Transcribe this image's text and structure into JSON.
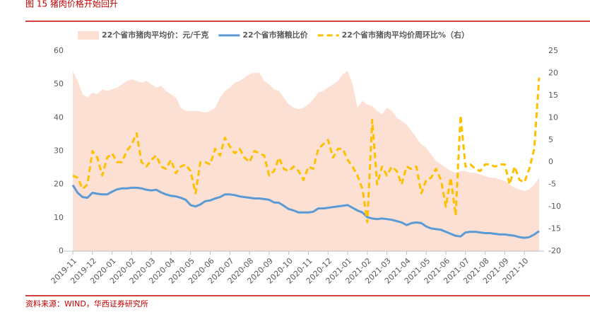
{
  "chart_data": {
    "type": "combo",
    "title": "图 15    猪肉价格开始回升",
    "source": "资料来源：WIND，华西证券研究所",
    "categories": [
      "2019-11",
      null,
      null,
      null,
      "2019-12",
      null,
      null,
      null,
      "2020-01",
      null,
      null,
      null,
      "2020-02",
      null,
      null,
      null,
      "2020-03",
      null,
      null,
      null,
      "2020-04",
      null,
      null,
      null,
      "2020-05",
      null,
      null,
      null,
      "2020-06",
      null,
      null,
      null,
      "2020-07",
      null,
      null,
      null,
      "2020-08",
      null,
      null,
      null,
      "2020-09",
      null,
      null,
      null,
      "2020-10",
      null,
      null,
      null,
      "2020-11",
      null,
      null,
      null,
      "2020-12",
      null,
      null,
      null,
      "2021-01",
      null,
      null,
      null,
      "2021-02",
      null,
      null,
      null,
      "2021-03",
      null,
      null,
      null,
      "2021-04",
      null,
      null,
      null,
      "2021-05",
      null,
      null,
      null,
      "2021-06",
      null,
      null,
      null,
      "2021-07",
      null,
      null,
      null,
      "2021-08",
      null,
      null,
      null,
      "2021-09",
      null,
      null,
      null,
      "2021-10",
      null,
      null,
      null
    ],
    "series": [
      {
        "name": "22个省市猪肉平均价：元/千克",
        "kind": "area",
        "color": "#fbe0d3",
        "values": [
          54,
          51,
          47,
          46,
          47.5,
          47,
          48.5,
          48,
          48.5,
          49,
          50,
          51,
          51.5,
          51,
          50.5,
          51,
          50,
          49,
          49.5,
          48,
          47,
          46,
          43,
          42,
          42,
          42,
          41.8,
          41.5,
          42,
          43,
          46,
          48,
          49,
          50.5,
          51,
          52,
          53,
          53.5,
          53.5,
          51,
          50,
          48.5,
          48,
          46,
          44,
          43,
          42.5,
          43,
          44,
          45.5,
          47.5,
          48,
          49,
          50,
          51,
          53,
          54,
          50,
          43,
          45,
          44,
          43.5,
          42,
          41,
          43,
          42,
          40,
          39,
          38,
          36,
          34,
          32,
          31,
          29,
          27,
          26,
          25,
          24,
          23.5,
          24,
          24,
          23.5,
          23.5,
          23,
          22.5,
          22,
          22,
          21.5,
          21,
          20,
          19,
          18.5,
          18,
          18.5,
          20,
          22
        ]
      },
      {
        "name": "22个省市猪粮比价",
        "kind": "line",
        "color": "#5b9bd5",
        "values": [
          19.8,
          17.5,
          16.2,
          16,
          17.5,
          17.2,
          17,
          17,
          17.8,
          18.5,
          18.8,
          18.8,
          19,
          19,
          18.8,
          18.4,
          18.2,
          18.4,
          17.6,
          17,
          16.6,
          16.4,
          16,
          15.4,
          13.8,
          13.4,
          14,
          15,
          15.2,
          15.8,
          16.2,
          17,
          17,
          16.8,
          16.4,
          16.2,
          16,
          15.8,
          15.8,
          15.6,
          15.4,
          14.6,
          14.5,
          13.6,
          12.6,
          12.2,
          11.6,
          11.6,
          11.6,
          11.8,
          12.8,
          12.8,
          13,
          13.2,
          13.4,
          13.6,
          13.8,
          13,
          12.2,
          11.6,
          10.2,
          9.8,
          9.6,
          9.8,
          9.6,
          9.4,
          9,
          8.6,
          7.8,
          8.4,
          8.6,
          8.4,
          7.4,
          6.8,
          6.6,
          6.4,
          5.8,
          5.2,
          4.6,
          4.4,
          5.6,
          5.8,
          5.8,
          5.6,
          5.4,
          5.4,
          5.2,
          5,
          5,
          4.8,
          4.6,
          4.2,
          4,
          4.2,
          5,
          6
        ]
      },
      {
        "name": "22个省市猪肉平均价周环比%（右）",
        "kind": "dashed",
        "axis": "y2",
        "color": "#ffc000",
        "values": [
          -3,
          -3.5,
          -6,
          -5,
          2.5,
          1,
          -3,
          1,
          2,
          0,
          0,
          2.5,
          4,
          6.5,
          0,
          -1,
          0.5,
          1.5,
          -1,
          -1.5,
          0.5,
          -2.5,
          -1,
          -0.5,
          -2,
          -7,
          0,
          0,
          -0.5,
          3,
          1.5,
          5.5,
          3.5,
          2,
          3,
          1,
          0,
          2.5,
          2,
          1.5,
          -3,
          -2,
          1,
          -1.5,
          -2,
          -1,
          -2,
          -4,
          -1,
          -1.5,
          3,
          4,
          5,
          1,
          3,
          3,
          0.5,
          -1,
          -3,
          -6,
          -13.5,
          9.5,
          -5,
          -1,
          -3,
          -1,
          -2,
          -5,
          -1,
          -1.5,
          -1,
          -7,
          -4,
          -3.5,
          -1.5,
          -4,
          -10,
          -3.5,
          -12,
          10.5,
          -1,
          -0.5,
          -1.5,
          -2,
          -0.5,
          -0.5,
          -1,
          -0.5,
          -0.5,
          -5,
          -1,
          -4,
          -4.5,
          -1.5,
          3,
          19
        ]
      }
    ],
    "ylim": [
      0,
      60
    ],
    "yticks": [
      0,
      10,
      20,
      30,
      40,
      50,
      60
    ],
    "y2lim": [
      -20,
      25
    ],
    "y2ticks": [
      -20,
      -15,
      -10,
      -5,
      0,
      5,
      10,
      15,
      20,
      25
    ]
  }
}
